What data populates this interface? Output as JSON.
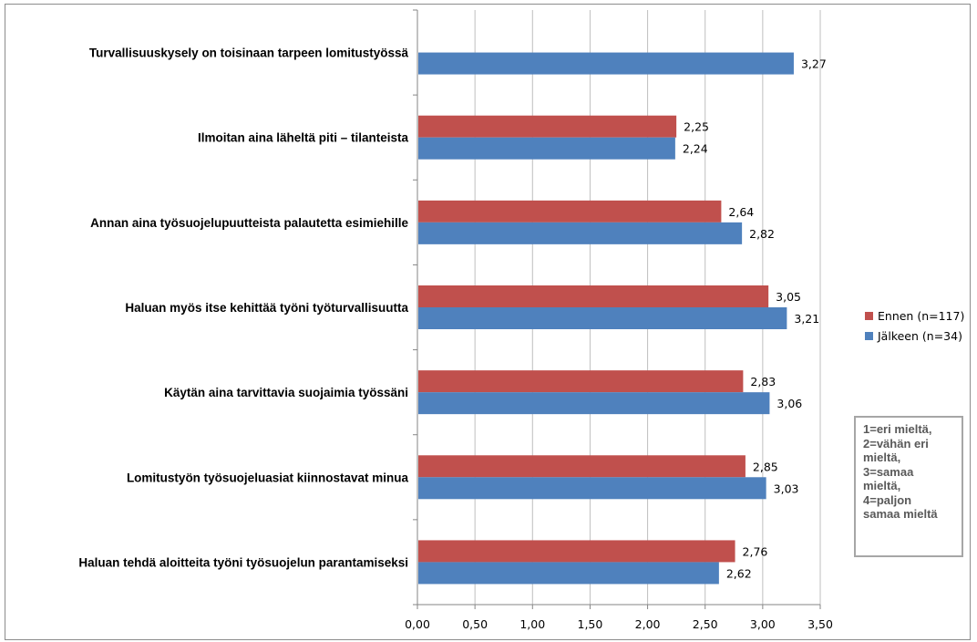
{
  "chart_data": {
    "type": "bar",
    "orientation": "horizontal",
    "categories": [
      "Turvallisuuskysely on toisinaan tarpeen lomitustyössä",
      "Ilmoitan aina läheltä piti – tilanteista",
      "Annan aina työsuojelupuutteista palautetta esimiehille",
      "Haluan myös itse kehittää työni työturvallisuutta",
      "Käytän aina tarvittavia suojaimia työssäni",
      "Lomitustyön työsuojeluasiat kiinnostavat minua",
      "Haluan tehdä aloitteita työni työsuojelun parantamiseksi"
    ],
    "series": [
      {
        "name": "Ennen (n=117)",
        "color": "#c0504d",
        "values": [
          null,
          2.25,
          2.64,
          3.05,
          2.83,
          2.85,
          2.76
        ],
        "labels": [
          "",
          "2,25",
          "2,64",
          "3,05",
          "2,83",
          "2,85",
          "2,76"
        ]
      },
      {
        "name": "Jälkeen (n=34)",
        "color": "#4f81bd",
        "values": [
          3.27,
          2.24,
          2.82,
          3.21,
          3.06,
          3.03,
          2.62
        ],
        "labels": [
          "3,27",
          "2,24",
          "2,82",
          "3,21",
          "3,06",
          "3,03",
          "2,62"
        ]
      }
    ],
    "xlim": [
      0,
      3.5
    ],
    "xticks": [
      "0,00",
      "0,50",
      "1,00",
      "1,50",
      "2,00",
      "2,50",
      "3,00",
      "3,50"
    ],
    "grid": "vertical",
    "legend_position": "right"
  },
  "note": {
    "lines": [
      "1=eri mieltä,",
      "2=vähän eri",
      "mieltä,",
      "3=samaa",
      "mieltä,",
      "4=paljon",
      "samaa mieltä"
    ]
  }
}
